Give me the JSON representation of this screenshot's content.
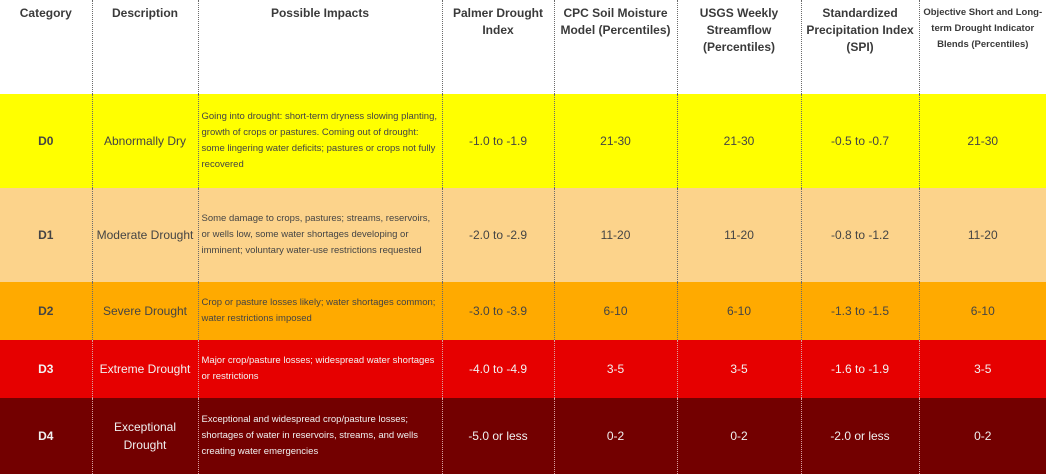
{
  "headers": [
    "Category",
    "Description",
    "Possible Impacts",
    "Palmer Drought Index",
    "CPC Soil Moisture Model (Percentiles)",
    "USGS Weekly Streamflow (Percentiles)",
    "Standardized Precipitation Index (SPI)",
    "Objective Short and Long-term Drought Indicator Blends (Percentiles)"
  ],
  "rows": [
    {
      "category": "D0",
      "description": "Abnormally Dry",
      "impacts": "Going into drought: short-term dryness slowing planting, growth of crops or pastures. Coming out of drought: some lingering water deficits;  pastures or crops not fully recovered",
      "palmer": "-1.0 to -1.9",
      "cpc": "21-30",
      "usgs": "21-30",
      "spi": "-0.5 to -0.7",
      "blends": "21-30",
      "color": "#ffff00"
    },
    {
      "category": "D1",
      "description": "Moderate Drought",
      "impacts": "Some damage to crops, pastures; streams, reservoirs, or wells low, some water shortages developing or imminent; voluntary water-use restrictions requested",
      "palmer": "-2.0 to -2.9",
      "cpc": "11-20",
      "usgs": "11-20",
      "spi": "-0.8 to -1.2",
      "blends": "11-20",
      "color": "#fcd38b"
    },
    {
      "category": "D2",
      "description": "Severe Drought",
      "impacts": "Crop or pasture losses likely;  water shortages common; water restrictions imposed",
      "palmer": "-3.0 to -3.9",
      "cpc": "6-10",
      "usgs": "6-10",
      "spi": "-1.3 to -1.5",
      "blends": "6-10",
      "color": "#ffaa00"
    },
    {
      "category": "D3",
      "description": "Extreme Drought",
      "impacts": "Major crop/pasture losses;  widespread water shortages or restrictions",
      "palmer": "-4.0 to -4.9",
      "cpc": "3-5",
      "usgs": "3-5",
      "spi": "-1.6 to -1.9",
      "blends": "3-5",
      "color": "#e60000"
    },
    {
      "category": "D4",
      "description": "Exceptional Drought",
      "impacts": "Exceptional and widespread crop/pasture losses; shortages of water in reservoirs, streams, and wells creating water emergencies",
      "palmer": "-5.0 or less",
      "cpc": "0-2",
      "usgs": "0-2",
      "spi": "-2.0 or less",
      "blends": "0-2",
      "color": "#730000"
    }
  ]
}
